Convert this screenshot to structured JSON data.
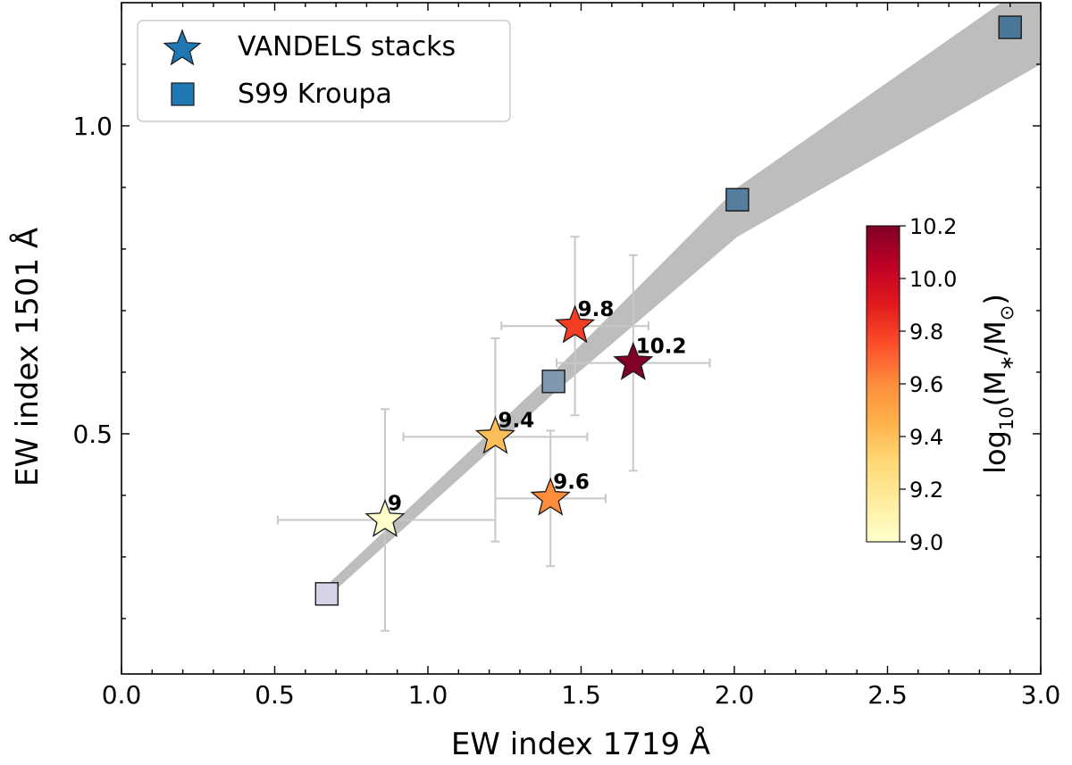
{
  "chart_data": {
    "type": "scatter",
    "xlabel": "EW index 1719 Å",
    "ylabel": "EW index 1501 Å",
    "xlim": [
      0.0,
      3.0
    ],
    "ylim": [
      0.11,
      1.2
    ],
    "x_ticks": [
      "0.0",
      "0.5",
      "1.0",
      "1.5",
      "2.0",
      "2.5",
      "3.0"
    ],
    "x_tick_values": [
      0.0,
      0.5,
      1.0,
      1.5,
      2.0,
      2.5,
      3.0
    ],
    "y_ticks": [
      "0.5",
      "1.0"
    ],
    "y_tick_values": [
      0.5,
      1.0
    ],
    "legend": {
      "position": "top-left",
      "entries": [
        {
          "label": "VANDELS stacks",
          "marker": "star",
          "color": "#1f77b4"
        },
        {
          "label": "S99 Kroupa",
          "marker": "square",
          "color": "#1f77b4"
        }
      ]
    },
    "colorbar": {
      "label": "log10(M*/M⊙)",
      "label_main": "log",
      "label_sub": "10",
      "label_rest": "(M",
      "label_star": "∗",
      "label_end": "/M",
      "label_sun": "⊙",
      "label_close": ")",
      "min": 9.0,
      "max": 10.2,
      "ticks": [
        "9.0",
        "9.2",
        "9.4",
        "9.6",
        "9.8",
        "10.0",
        "10.2"
      ],
      "tick_values": [
        9.0,
        9.2,
        9.4,
        9.6,
        9.8,
        10.0,
        10.2
      ],
      "colormap": [
        "#ffffcc",
        "#ffeda0",
        "#fed976",
        "#feb24c",
        "#fd8d3c",
        "#fc4e2a",
        "#e31a1c",
        "#bd0026",
        "#800026"
      ]
    },
    "series": [
      {
        "name": "VANDELS stacks",
        "marker": "star",
        "points": [
          {
            "label": "9",
            "mass": 9.0,
            "x": 0.86,
            "y": 0.36,
            "xerr": [
              0.35,
              0.36
            ],
            "yerr": [
              0.18,
              0.18
            ]
          },
          {
            "label": "9.4",
            "mass": 9.4,
            "x": 1.22,
            "y": 0.495,
            "xerr": [
              0.3,
              0.3
            ],
            "yerr": [
              0.17,
              0.16
            ]
          },
          {
            "label": "9.6",
            "mass": 9.6,
            "x": 1.4,
            "y": 0.395,
            "xerr": [
              0.18,
              0.18
            ],
            "yerr": [
              0.11,
              0.11
            ]
          },
          {
            "label": "9.8",
            "mass": 9.8,
            "x": 1.48,
            "y": 0.675,
            "xerr": [
              0.24,
              0.24
            ],
            "yerr": [
              0.145,
              0.145
            ]
          },
          {
            "label": "10.2",
            "mass": 10.2,
            "x": 1.67,
            "y": 0.615,
            "xerr": [
              0.25,
              0.25
            ],
            "yerr": [
              0.175,
              0.175
            ]
          }
        ]
      },
      {
        "name": "S99 Kroupa",
        "marker": "square",
        "points": [
          {
            "x": 0.67,
            "y": 0.24,
            "color": "#d4d4e6"
          },
          {
            "x": 1.41,
            "y": 0.585,
            "color": "#7f98b0"
          },
          {
            "x": 2.01,
            "y": 0.88,
            "color": "#567d9c"
          },
          {
            "x": 2.9,
            "y": 1.16,
            "color": "#4b7799"
          }
        ]
      }
    ],
    "band": {
      "color": "#bdbdbd",
      "upper": [
        [
          0.64,
          0.24
        ],
        [
          1.41,
          0.6
        ],
        [
          2.01,
          0.9
        ],
        [
          2.9,
          1.21
        ],
        [
          3.0,
          1.21
        ]
      ],
      "lower": [
        [
          3.0,
          1.1
        ],
        [
          2.01,
          0.82
        ],
        [
          1.41,
          0.565
        ],
        [
          0.64,
          0.22
        ]
      ]
    }
  }
}
